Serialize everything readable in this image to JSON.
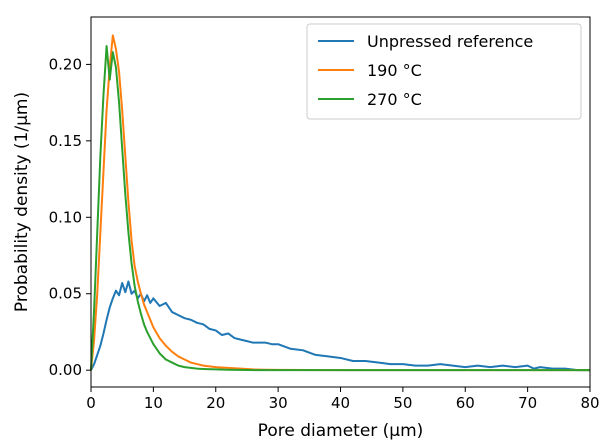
{
  "chart_data": {
    "type": "line",
    "xlabel": "Pore diameter (µm)",
    "ylabel": "Probability density (1/µm)",
    "xlim": [
      0,
      80
    ],
    "ylim": [
      -0.011,
      0.231
    ],
    "xticks": [
      0,
      10,
      20,
      30,
      40,
      50,
      60,
      70,
      80
    ],
    "xtick_labels": [
      "0",
      "10",
      "20",
      "30",
      "40",
      "50",
      "60",
      "70",
      "80"
    ],
    "yticks": [
      0.0,
      0.05,
      0.1,
      0.15,
      0.2
    ],
    "ytick_labels": [
      "0.00",
      "0.05",
      "0.10",
      "0.15",
      "0.20"
    ],
    "grid": false,
    "legend_position": "top-right",
    "series": [
      {
        "name": "Unpressed reference",
        "color": "#1f77b4",
        "x": [
          0,
          0.5,
          1,
          1.5,
          2,
          2.5,
          3,
          3.5,
          4,
          4.5,
          5,
          5.5,
          6,
          6.5,
          7,
          7.5,
          8,
          8.5,
          9,
          9.5,
          10,
          11,
          12,
          13,
          14,
          15,
          16,
          17,
          18,
          19,
          20,
          21,
          22,
          23,
          24,
          25,
          26,
          27,
          28,
          29,
          30,
          32,
          34,
          36,
          38,
          40,
          42,
          44,
          46,
          48,
          50,
          52,
          54,
          56,
          58,
          60,
          62,
          64,
          66,
          68,
          70,
          71,
          72,
          74,
          76,
          78,
          80
        ],
        "y": [
          0.0,
          0.004,
          0.01,
          0.016,
          0.024,
          0.033,
          0.041,
          0.047,
          0.052,
          0.049,
          0.057,
          0.051,
          0.058,
          0.05,
          0.052,
          0.047,
          0.05,
          0.045,
          0.049,
          0.044,
          0.047,
          0.042,
          0.044,
          0.038,
          0.036,
          0.034,
          0.033,
          0.031,
          0.03,
          0.027,
          0.026,
          0.023,
          0.024,
          0.021,
          0.02,
          0.019,
          0.018,
          0.018,
          0.018,
          0.017,
          0.017,
          0.014,
          0.013,
          0.01,
          0.009,
          0.008,
          0.006,
          0.006,
          0.005,
          0.004,
          0.004,
          0.003,
          0.003,
          0.004,
          0.003,
          0.002,
          0.003,
          0.002,
          0.003,
          0.002,
          0.003,
          0.001,
          0.002,
          0.001,
          0.001,
          0.0,
          0.0
        ]
      },
      {
        "name": "190 °C",
        "color": "#ff7f0e",
        "x": [
          0,
          0.5,
          1,
          1.5,
          2,
          2.5,
          3,
          3.5,
          4,
          4.5,
          5,
          5.5,
          6,
          6.5,
          7,
          7.5,
          8,
          8.5,
          9,
          10,
          11,
          12,
          13,
          14,
          15,
          16,
          17,
          18,
          19,
          20,
          22,
          24,
          26,
          28,
          30,
          35,
          40,
          50,
          60,
          70,
          80
        ],
        "y": [
          0.0,
          0.02,
          0.05,
          0.09,
          0.13,
          0.17,
          0.198,
          0.219,
          0.21,
          0.195,
          0.17,
          0.14,
          0.11,
          0.085,
          0.068,
          0.058,
          0.05,
          0.043,
          0.038,
          0.028,
          0.021,
          0.016,
          0.012,
          0.009,
          0.007,
          0.005,
          0.004,
          0.003,
          0.0025,
          0.002,
          0.0015,
          0.001,
          0.0005,
          0.0003,
          0.0002,
          0.0001,
          0.0,
          0.0,
          0.0,
          0.0,
          0.0
        ]
      },
      {
        "name": "270 °C",
        "color": "#2ca02c",
        "x": [
          0,
          0.5,
          1,
          1.5,
          2,
          2.5,
          3,
          3.5,
          4,
          4.5,
          5,
          5.5,
          6,
          6.5,
          7,
          7.5,
          8,
          8.5,
          9,
          10,
          11,
          12,
          13,
          14,
          15,
          16,
          17,
          18,
          20,
          22,
          25,
          30,
          40,
          50,
          60,
          70,
          80
        ],
        "y": [
          0.0,
          0.04,
          0.09,
          0.14,
          0.18,
          0.212,
          0.19,
          0.208,
          0.198,
          0.175,
          0.145,
          0.115,
          0.09,
          0.07,
          0.055,
          0.045,
          0.037,
          0.03,
          0.025,
          0.017,
          0.011,
          0.007,
          0.005,
          0.003,
          0.002,
          0.0015,
          0.001,
          0.0008,
          0.0005,
          0.0003,
          0.0001,
          0.0,
          0.0,
          0.0,
          0.0,
          0.0,
          0.0
        ]
      }
    ]
  }
}
